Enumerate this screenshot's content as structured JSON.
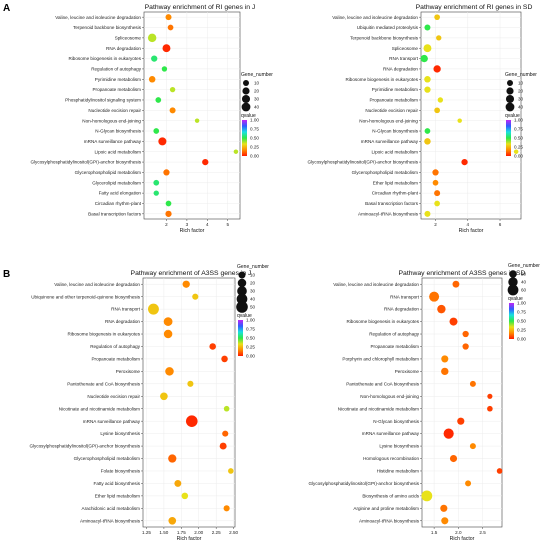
{
  "sections": [
    "A",
    "B"
  ],
  "legend_labels": {
    "size": "Gene_number",
    "color": "qvalue"
  },
  "colorbar_ticks": [
    "1.00",
    "0.75",
    "0.50",
    "0.25",
    "0.00"
  ],
  "colorbar_colors": [
    "#c026f5",
    "#2f5bff",
    "#19e0e0",
    "#2ee84a",
    "#e8e21a",
    "#ff8a00",
    "#ff1a00"
  ],
  "chart_data": [
    {
      "type": "scatter",
      "section": "A",
      "title": "Pathway enrichment of RI genes in J",
      "xlabel": "Rich factor",
      "xlim": [
        0.9,
        5.6
      ],
      "xticks": [
        2,
        3,
        4,
        5
      ],
      "size_legend": [
        10,
        20,
        30,
        40
      ],
      "categories": [
        "Valine, leucine and isoleucine degradation",
        "Terpenoid backbone biosynthesis",
        "Spliceosome",
        "RNA degradation",
        "Ribosome biogenesis in eukaryotes",
        "Regulation of autophagy",
        "Pyrimidine metabolism",
        "Propanoate metabolism",
        "Phosphatidylinositol signaling system",
        "Nucleotide excision repair",
        "Non-homologous end-joining",
        "N-Glycan biosynthesis",
        "mRNA surveillance pathway",
        "Lipoic acid metabolism",
        "Glycosylphosphatidylinositol(GPI)-anchor biosynthesis",
        "Glycerophospholipid metabolism",
        "Glycerolipid metabolism",
        "Fatty acid elongation",
        "Circadian rhythm-plant",
        "Basal transcription factors"
      ],
      "points": [
        {
          "pathway": "Valine, leucine and isoleucine degradation",
          "rich_factor": 2.1,
          "gene_number": 10,
          "qvalue": 0.15
        },
        {
          "pathway": "Terpenoid backbone biosynthesis",
          "rich_factor": 2.2,
          "gene_number": 8,
          "qvalue": 0.12
        },
        {
          "pathway": "Spliceosome",
          "rich_factor": 1.3,
          "gene_number": 35,
          "qvalue": 0.35
        },
        {
          "pathway": "RNA degradation",
          "rich_factor": 2.0,
          "gene_number": 28,
          "qvalue": 0.02
        },
        {
          "pathway": "Ribosome biogenesis in eukaryotes",
          "rich_factor": 1.4,
          "gene_number": 12,
          "qvalue": 0.55
        },
        {
          "pathway": "Regulation of autophagy",
          "rich_factor": 1.9,
          "gene_number": 6,
          "qvalue": 0.5
        },
        {
          "pathway": "Pyrimidine metabolism",
          "rich_factor": 1.3,
          "gene_number": 14,
          "qvalue": 0.15
        },
        {
          "pathway": "Propanoate metabolism",
          "rich_factor": 2.3,
          "gene_number": 6,
          "qvalue": 0.35
        },
        {
          "pathway": "Phosphatidylinositol signaling system",
          "rich_factor": 1.6,
          "gene_number": 8,
          "qvalue": 0.5
        },
        {
          "pathway": "Nucleotide excision repair",
          "rich_factor": 2.3,
          "gene_number": 10,
          "qvalue": 0.15
        },
        {
          "pathway": "Non-homologous end-joining",
          "rich_factor": 3.5,
          "gene_number": 2,
          "qvalue": 0.35
        },
        {
          "pathway": "N-Glycan biosynthesis",
          "rich_factor": 1.5,
          "gene_number": 8,
          "qvalue": 0.5
        },
        {
          "pathway": "mRNA surveillance pathway",
          "rich_factor": 1.8,
          "gene_number": 30,
          "qvalue": 0.02
        },
        {
          "pathway": "Lipoic acid metabolism",
          "rich_factor": 5.4,
          "gene_number": 2,
          "qvalue": 0.35
        },
        {
          "pathway": "Glycosylphosphatidylinositol(GPI)-anchor biosynthesis",
          "rich_factor": 3.9,
          "gene_number": 12,
          "qvalue": 0.02
        },
        {
          "pathway": "Glycerophospholipid metabolism",
          "rich_factor": 2.0,
          "gene_number": 12,
          "qvalue": 0.12
        },
        {
          "pathway": "Glycerolipid metabolism",
          "rich_factor": 1.5,
          "gene_number": 8,
          "qvalue": 0.55
        },
        {
          "pathway": "Fatty acid elongation",
          "rich_factor": 1.5,
          "gene_number": 6,
          "qvalue": 0.55
        },
        {
          "pathway": "Circadian rhythm-plant",
          "rich_factor": 2.1,
          "gene_number": 8,
          "qvalue": 0.5
        },
        {
          "pathway": "Basal transcription factors",
          "rich_factor": 2.1,
          "gene_number": 12,
          "qvalue": 0.12
        }
      ]
    },
    {
      "type": "scatter",
      "section": "A",
      "title": "Pathway enrichment of RI genes in SD",
      "xlabel": "Rich factor",
      "xlim": [
        1.1,
        7.3
      ],
      "xticks": [
        2,
        4,
        6
      ],
      "size_legend": [
        10,
        20,
        30,
        40
      ],
      "categories": [
        "Valine, leucine and isoleucine degradation",
        "Ubiquitin mediated proteolysis",
        "Terpenoid backbone biosynthesis",
        "Spliceosome",
        "RNA transport",
        "RNA degradation",
        "Ribosome biogenesis in eukaryotes",
        "Pyrimidine metabolism",
        "Propanoate metabolism",
        "Nucleotide excision repair",
        "Non-homologous end-joining",
        "N-Glycan biosynthesis",
        "mRNA surveillance pathway",
        "Lipoic acid metabolism",
        "Glycosylphosphatidylinositol(GPI)-anchor biosynthesis",
        "Glycerophospholipid metabolism",
        "Ether lipid metabolism",
        "Circadian rhythm-plant",
        "Basal transcription factors",
        "Aminoacyl-tRNA biosynthesis"
      ],
      "points": [
        {
          "pathway": "Valine, leucine and isoleucine degradation",
          "rich_factor": 2.1,
          "gene_number": 8,
          "qvalue": 0.25
        },
        {
          "pathway": "Ubiquitin mediated proteolysis",
          "rich_factor": 1.5,
          "gene_number": 10,
          "qvalue": 0.5
        },
        {
          "pathway": "Terpenoid backbone biosynthesis",
          "rich_factor": 2.2,
          "gene_number": 6,
          "qvalue": 0.25
        },
        {
          "pathway": "Spliceosome",
          "rich_factor": 1.5,
          "gene_number": 28,
          "qvalue": 0.3
        },
        {
          "pathway": "RNA transport",
          "rich_factor": 1.3,
          "gene_number": 22,
          "qvalue": 0.5
        },
        {
          "pathway": "RNA degradation",
          "rich_factor": 2.1,
          "gene_number": 22,
          "qvalue": 0.02
        },
        {
          "pathway": "Ribosome biogenesis in eukaryotes",
          "rich_factor": 1.5,
          "gene_number": 14,
          "qvalue": 0.3
        },
        {
          "pathway": "Pyrimidine metabolism",
          "rich_factor": 1.5,
          "gene_number": 12,
          "qvalue": 0.3
        },
        {
          "pathway": "Propanoate metabolism",
          "rich_factor": 2.3,
          "gene_number": 6,
          "qvalue": 0.3
        },
        {
          "pathway": "Nucleotide excision repair",
          "rich_factor": 2.1,
          "gene_number": 8,
          "qvalue": 0.25
        },
        {
          "pathway": "Non-homologous end-joining",
          "rich_factor": 3.5,
          "gene_number": 2,
          "qvalue": 0.3
        },
        {
          "pathway": "N-Glycan biosynthesis",
          "rich_factor": 1.5,
          "gene_number": 8,
          "qvalue": 0.5
        },
        {
          "pathway": "mRNA surveillance pathway",
          "rich_factor": 1.5,
          "gene_number": 14,
          "qvalue": 0.25
        },
        {
          "pathway": "Lipoic acid metabolism",
          "rich_factor": 7.0,
          "gene_number": 2,
          "qvalue": 0.3
        },
        {
          "pathway": "Glycosylphosphatidylinositol(GPI)-anchor biosynthesis",
          "rich_factor": 3.8,
          "gene_number": 12,
          "qvalue": 0.02
        },
        {
          "pathway": "Glycerophospholipid metabolism",
          "rich_factor": 2.0,
          "gene_number": 12,
          "qvalue": 0.12
        },
        {
          "pathway": "Ether lipid metabolism",
          "rich_factor": 2.0,
          "gene_number": 8,
          "qvalue": 0.15
        },
        {
          "pathway": "Circadian rhythm-plant",
          "rich_factor": 2.1,
          "gene_number": 10,
          "qvalue": 0.12
        },
        {
          "pathway": "Basal transcription factors",
          "rich_factor": 2.1,
          "gene_number": 8,
          "qvalue": 0.3
        },
        {
          "pathway": "Aminoacyl-tRNA biosynthesis",
          "rich_factor": 1.5,
          "gene_number": 10,
          "qvalue": 0.3
        }
      ]
    },
    {
      "type": "scatter",
      "section": "B",
      "title": "Pathway enrichment of A3SS genes in J",
      "xlabel": "Rich factor",
      "xlim": [
        1.2,
        2.52
      ],
      "xticks": [
        "1.25",
        "1.50",
        "1.75",
        "2.00",
        "2.25",
        "2.50"
      ],
      "size_legend": [
        10,
        20,
        30,
        40,
        50
      ],
      "categories": [
        "Valine, leucine and isoleucine degradation",
        "Ubiquinone and other terpenoid-quinone biosynthesis",
        "RNA transport",
        "RNA degradation",
        "Ribosome biogenesis in eukaryotes",
        "Regulation of autophagy",
        "Propanoate metabolism",
        "Peroxisome",
        "Pantothenate and CoA biosynthesis",
        "Nucleotide excision repair",
        "Nicotinate and nicotinamide metabolism",
        "mRNA surveillance pathway",
        "Lysine biosynthesis",
        "Glycosylphosphatidylinositol(GPI)-anchor biosynthesis",
        "Glycerophospholipid metabolism",
        "Folate biosynthesis",
        "Fatty acid biosynthesis",
        "Ether lipid metabolism",
        "Arachidonic acid metabolism",
        "Aminoacyl-tRNA biosynthesis"
      ],
      "points": [
        {
          "pathway": "Valine, leucine and isoleucine degradation",
          "rich_factor": 1.82,
          "gene_number": 12,
          "qvalue": 0.15
        },
        {
          "pathway": "Ubiquinone and other terpenoid-quinone biosynthesis",
          "rich_factor": 1.95,
          "gene_number": 6,
          "qvalue": 0.25
        },
        {
          "pathway": "RNA transport",
          "rich_factor": 1.35,
          "gene_number": 42,
          "qvalue": 0.25
        },
        {
          "pathway": "RNA degradation",
          "rich_factor": 1.56,
          "gene_number": 22,
          "qvalue": 0.15
        },
        {
          "pathway": "Ribosome biogenesis in eukaryotes",
          "rich_factor": 1.56,
          "gene_number": 20,
          "qvalue": 0.15
        },
        {
          "pathway": "Regulation of autophagy",
          "rich_factor": 2.2,
          "gene_number": 8,
          "qvalue": 0.05
        },
        {
          "pathway": "Propanoate metabolism",
          "rich_factor": 2.37,
          "gene_number": 8,
          "qvalue": 0.05
        },
        {
          "pathway": "Peroxisome",
          "rich_factor": 1.58,
          "gene_number": 20,
          "qvalue": 0.15
        },
        {
          "pathway": "Pantothenate and CoA biosynthesis",
          "rich_factor": 1.88,
          "gene_number": 6,
          "qvalue": 0.25
        },
        {
          "pathway": "Nucleotide excision repair",
          "rich_factor": 1.5,
          "gene_number": 14,
          "qvalue": 0.25
        },
        {
          "pathway": "Nicotinate and nicotinamide metabolism",
          "rich_factor": 2.4,
          "gene_number": 4,
          "qvalue": 0.35
        },
        {
          "pathway": "mRNA surveillance pathway",
          "rich_factor": 1.9,
          "gene_number": 50,
          "qvalue": 0.02
        },
        {
          "pathway": "Lysine biosynthesis",
          "rich_factor": 2.38,
          "gene_number": 6,
          "qvalue": 0.1
        },
        {
          "pathway": "Glycosylphosphatidylinositol(GPI)-anchor biosynthesis",
          "rich_factor": 2.35,
          "gene_number": 10,
          "qvalue": 0.05
        },
        {
          "pathway": "Glycerophospholipid metabolism",
          "rich_factor": 1.62,
          "gene_number": 18,
          "qvalue": 0.1
        },
        {
          "pathway": "Folate biosynthesis",
          "rich_factor": 2.46,
          "gene_number": 4,
          "qvalue": 0.25
        },
        {
          "pathway": "Fatty acid biosynthesis",
          "rich_factor": 1.7,
          "gene_number": 10,
          "qvalue": 0.2
        },
        {
          "pathway": "Ether lipid metabolism",
          "rich_factor": 1.8,
          "gene_number": 8,
          "qvalue": 0.3
        },
        {
          "pathway": "Arachidonic acid metabolism",
          "rich_factor": 2.4,
          "gene_number": 6,
          "qvalue": 0.15
        },
        {
          "pathway": "Aminoacyl-tRNA biosynthesis",
          "rich_factor": 1.62,
          "gene_number": 14,
          "qvalue": 0.2
        }
      ]
    },
    {
      "type": "scatter",
      "section": "B",
      "title": "Pathway enrichment of A3SS genes in SD",
      "xlabel": "Rich factor",
      "xlim": [
        1.25,
        2.9
      ],
      "xticks": [
        "1.5",
        "2.0",
        "2.5"
      ],
      "size_legend": [
        20,
        40,
        60
      ],
      "categories": [
        "Valine, leucine and isoleucine degradation",
        "RNA transport",
        "RNA degradation",
        "Ribosome biogenesis in eukaryotes",
        "Regulation of autophagy",
        "Propanoate metabolism",
        "Porphyrin and chlorophyll metabolism",
        "Peroxisome",
        "Pantothenate and CoA biosynthesis",
        "Non-homologous end-joining",
        "Nicotinate and nicotinamide metabolism",
        "N-Glycan biosynthesis",
        "mRNA surveillance pathway",
        "Lysine biosynthesis",
        "Homologous recombination",
        "Histidine metabolism",
        "Glycosylphosphatidylinositol(GPI)-anchor biosynthesis",
        "Biosynthesis of amino acids",
        "Arginine and proline metabolism",
        "Aminoacyl-tRNA biosynthesis"
      ],
      "points": [
        {
          "pathway": "Valine, leucine and isoleucine degradation",
          "rich_factor": 1.95,
          "gene_number": 14,
          "qvalue": 0.1
        },
        {
          "pathway": "RNA transport",
          "rich_factor": 1.5,
          "gene_number": 48,
          "qvalue": 0.12
        },
        {
          "pathway": "RNA degradation",
          "rich_factor": 1.65,
          "gene_number": 28,
          "qvalue": 0.08
        },
        {
          "pathway": "Ribosome biogenesis in eukaryotes",
          "rich_factor": 1.9,
          "gene_number": 24,
          "qvalue": 0.05
        },
        {
          "pathway": "Regulation of autophagy",
          "rich_factor": 2.15,
          "gene_number": 10,
          "qvalue": 0.1
        },
        {
          "pathway": "Propanoate metabolism",
          "rich_factor": 2.15,
          "gene_number": 10,
          "qvalue": 0.1
        },
        {
          "pathway": "Porphyrin and chlorophyll metabolism",
          "rich_factor": 1.72,
          "gene_number": 16,
          "qvalue": 0.15
        },
        {
          "pathway": "Peroxisome",
          "rich_factor": 1.72,
          "gene_number": 18,
          "qvalue": 0.12
        },
        {
          "pathway": "Pantothenate and CoA biosynthesis",
          "rich_factor": 2.3,
          "gene_number": 8,
          "qvalue": 0.12
        },
        {
          "pathway": "Non-homologous end-joining",
          "rich_factor": 2.65,
          "gene_number": 4,
          "qvalue": 0.05
        },
        {
          "pathway": "Nicotinate and nicotinamide metabolism",
          "rich_factor": 2.65,
          "gene_number": 6,
          "qvalue": 0.05
        },
        {
          "pathway": "N-Glycan biosynthesis",
          "rich_factor": 2.05,
          "gene_number": 16,
          "qvalue": 0.05
        },
        {
          "pathway": "mRNA surveillance pathway",
          "rich_factor": 1.8,
          "gene_number": 50,
          "qvalue": 0.02
        },
        {
          "pathway": "Lysine biosynthesis",
          "rich_factor": 2.3,
          "gene_number": 8,
          "qvalue": 0.15
        },
        {
          "pathway": "Homologous recombination",
          "rich_factor": 1.9,
          "gene_number": 16,
          "qvalue": 0.1
        },
        {
          "pathway": "Histidine metabolism",
          "rich_factor": 2.85,
          "gene_number": 6,
          "qvalue": 0.05
        },
        {
          "pathway": "Glycosylphosphatidylinositol(GPI)-anchor biosynthesis",
          "rich_factor": 2.2,
          "gene_number": 8,
          "qvalue": 0.15
        },
        {
          "pathway": "Biosynthesis of amino acids",
          "rich_factor": 1.35,
          "gene_number": 60,
          "qvalue": 0.3
        },
        {
          "pathway": "Arginine and proline metabolism",
          "rich_factor": 1.7,
          "gene_number": 16,
          "qvalue": 0.12
        },
        {
          "pathway": "Aminoacyl-tRNA biosynthesis",
          "rich_factor": 1.72,
          "gene_number": 16,
          "qvalue": 0.15
        }
      ]
    }
  ]
}
